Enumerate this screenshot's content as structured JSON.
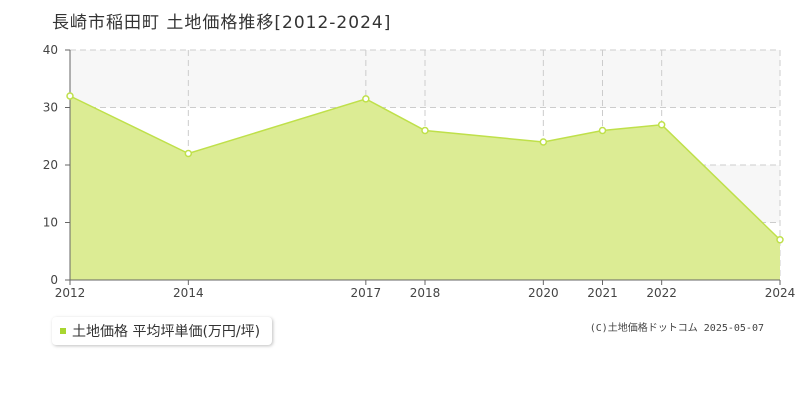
{
  "title": "長崎市稲田町 土地価格推移[2012-2024]",
  "legend": {
    "label": "土地価格 平均坪単価(万円/坪)"
  },
  "credit": "(C)土地価格ドットコム 2025-05-07",
  "colors": {
    "area_fill": "#dcec94",
    "line": "#bfe04a",
    "point_fill": "#ffffff",
    "grid": "#cccccc",
    "band": "#f7f7f7",
    "legend_swatch": "#a8d630"
  },
  "chart_data": {
    "type": "area",
    "title": "長崎市稲田町 土地価格推移[2012-2024]",
    "x": [
      2012,
      2014,
      2017,
      2018,
      2020,
      2021,
      2022,
      2024
    ],
    "x_tick_labels": [
      "2012",
      "2014",
      "2017",
      "2018",
      "2020",
      "2021",
      "2022",
      "2024"
    ],
    "y_ticks": [
      0,
      10,
      20,
      30,
      40
    ],
    "ylim": [
      0,
      40
    ],
    "grid": true,
    "legend_position": "bottom-left",
    "series": [
      {
        "name": "土地価格 平均坪単価(万円/坪)",
        "values": [
          32,
          22,
          31.5,
          26,
          24,
          26,
          27,
          7
        ]
      }
    ]
  }
}
